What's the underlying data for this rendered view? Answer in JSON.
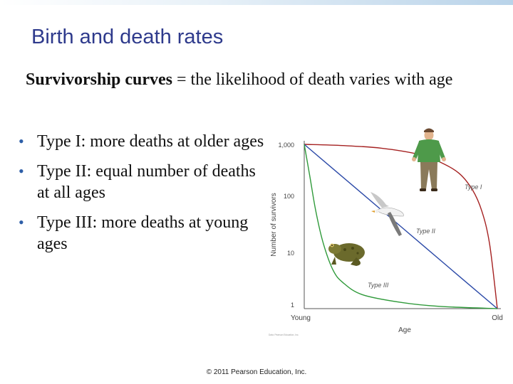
{
  "slide": {
    "title": "Birth and death rates",
    "intro_term": "Survivorship curves",
    "intro_rest": " = the likelihood of death varies with age",
    "bullets": [
      "Type I: more deaths at older ages",
      "Type II: equal number of deaths at all ages",
      "Type III: more deaths at young ages"
    ],
    "credit": "© 2011 Pearson Education, Inc."
  },
  "chart_data": {
    "type": "line",
    "ylabel": "Number of survivors",
    "xlabel": "Age",
    "y_scale": "log",
    "ylim": [
      1,
      1000
    ],
    "y_ticks": [
      {
        "value": 1000,
        "label": "1,000"
      },
      {
        "value": 100,
        "label": "100"
      },
      {
        "value": 10,
        "label": "10"
      },
      {
        "value": 1,
        "label": "1"
      }
    ],
    "x_range": [
      0,
      1
    ],
    "x_ticks": [
      {
        "value": 0,
        "label": "Young"
      },
      {
        "value": 1,
        "label": "Old"
      }
    ],
    "series": [
      {
        "name": "Type I",
        "color": "#a52121",
        "x": [
          0,
          0.2,
          0.4,
          0.6,
          0.7,
          0.8,
          0.87,
          0.92,
          0.96,
          1.0
        ],
        "y": [
          1000,
          950,
          850,
          650,
          480,
          300,
          150,
          60,
          15,
          1
        ]
      },
      {
        "name": "Type II",
        "color": "#2c4aa8",
        "x": [
          0,
          0.25,
          0.5,
          0.75,
          1.0
        ],
        "y": [
          1000,
          178,
          31.6,
          5.6,
          1
        ]
      },
      {
        "name": "Type III",
        "color": "#2f9a3a",
        "x": [
          0,
          0.03,
          0.06,
          0.1,
          0.15,
          0.2,
          0.3,
          0.5,
          0.7,
          1.0
        ],
        "y": [
          1000,
          250,
          60,
          15,
          5,
          3,
          1.8,
          1.3,
          1.1,
          1
        ]
      }
    ],
    "illustrations": [
      "human-illustration",
      "bird-illustration",
      "frog-illustration"
    ],
    "source_note": "Data: Pearson Education, Inc."
  }
}
